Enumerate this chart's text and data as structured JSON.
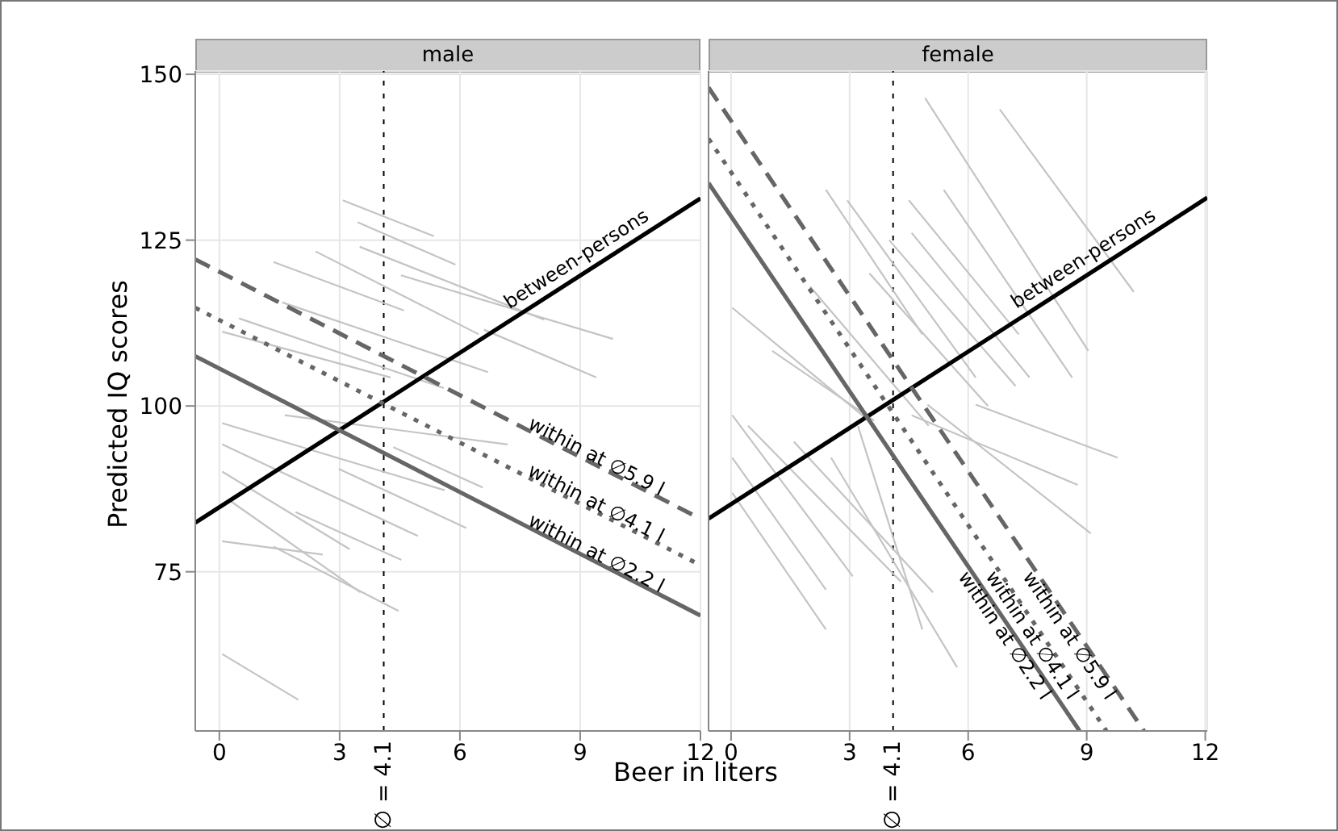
{
  "chart_data": [
    {
      "type": "line",
      "title": "male",
      "xlabel": "Beer in liters",
      "ylabel": "Predicted IQ scores",
      "xlim": [
        -0.6,
        12
      ],
      "ylim": [
        51,
        150.5
      ],
      "xticks": [
        0,
        3,
        6,
        9,
        12
      ],
      "yticks": [
        75,
        100,
        125,
        150
      ],
      "grid": true,
      "ref_lines": [
        {
          "axis": "x",
          "value": 4.1,
          "label": "∅ = 4.1",
          "line_style": "dotted"
        }
      ],
      "series": [
        {
          "color": "#c4c4c4",
          "x": [
            3.08,
            5.35
          ],
          "values": [
            131.0,
            125.6
          ]
        },
        {
          "color": "#c4c4c4",
          "x": [
            3.45,
            5.89
          ],
          "values": [
            127.7,
            121.3
          ]
        },
        {
          "color": "#c4c4c4",
          "x": [
            4.53,
            9.82
          ],
          "values": [
            119.7,
            110.1
          ]
        },
        {
          "color": "#c4c4c4",
          "x": [
            2.4,
            6.47
          ],
          "values": [
            123.3,
            110.8
          ]
        },
        {
          "color": "#c4c4c4",
          "x": [
            1.35,
            4.6
          ],
          "values": [
            121.7,
            114.4
          ]
        },
        {
          "color": "#c4c4c4",
          "x": [
            6.6,
            9.4
          ],
          "values": [
            111.5,
            104.3
          ]
        },
        {
          "color": "#c4c4c4",
          "x": [
            1.57,
            6.7
          ],
          "values": [
            115.6,
            105.1
          ]
        },
        {
          "color": "#c4c4c4",
          "x": [
            0.49,
            5.6
          ],
          "values": [
            113.2,
            102.7
          ]
        },
        {
          "color": "#c4c4c4",
          "x": [
            0.07,
            4.27
          ],
          "values": [
            111.2,
            104.3
          ]
        },
        {
          "color": "#c4c4c4",
          "x": [
            3.5,
            8.1
          ],
          "values": [
            124,
            113
          ]
        },
        {
          "color": "#c4c4c4",
          "x": [
            0.07,
            5.62
          ],
          "values": [
            97.4,
            87.3
          ]
        },
        {
          "color": "#c4c4c4",
          "x": [
            0.07,
            4.95
          ],
          "values": [
            94.2,
            80.4
          ]
        },
        {
          "color": "#c4c4c4",
          "x": [
            0.07,
            3.25
          ],
          "values": [
            90.1,
            78.4
          ]
        },
        {
          "color": "#c4c4c4",
          "x": [
            0.07,
            2.58
          ],
          "values": [
            79.6,
            77.6
          ]
        },
        {
          "color": "#c4c4c4",
          "x": [
            0.07,
            1.97
          ],
          "values": [
            62.6,
            55.7
          ]
        },
        {
          "color": "#c4c4c4",
          "x": [
            1.35,
            4.47
          ],
          "values": [
            78.8,
            69.1
          ]
        },
        {
          "color": "#c4c4c4",
          "x": [
            0.27,
            3.52
          ],
          "values": [
            85.7,
            71.9
          ]
        },
        {
          "color": "#c4c4c4",
          "x": [
            1.63,
            7.19
          ],
          "values": [
            98.6,
            94.2
          ]
        },
        {
          "color": "#c4c4c4",
          "x": [
            2.98,
            6.16
          ],
          "values": [
            90.5,
            81.6
          ]
        },
        {
          "color": "#c4c4c4",
          "x": [
            4.34,
            6.57
          ],
          "values": [
            93.8,
            87.7
          ]
        },
        {
          "color": "#c4c4c4",
          "x": [
            1.9,
            4.54
          ],
          "values": [
            84.0,
            76.8
          ]
        },
        {
          "name": "between-persons",
          "color": "#000000",
          "line_style": "solid",
          "x": [
            -0.6,
            12
          ],
          "values": [
            82.4,
            131.3
          ]
        },
        {
          "name": "within at ∅5.9 l",
          "color": "#666666",
          "line_style": "dashed",
          "x": [
            -0.6,
            12
          ],
          "values": [
            122.1,
            83
          ]
        },
        {
          "name": "within at ∅4.1 l",
          "color": "#666666",
          "line_style": "dotted",
          "x": [
            -0.6,
            12
          ],
          "values": [
            114.8,
            76
          ]
        },
        {
          "name": "within at ∅2.2 l",
          "color": "#666666",
          "line_style": "solid",
          "x": [
            -0.6,
            12
          ],
          "values": [
            107.5,
            68.4
          ]
        }
      ]
    },
    {
      "type": "line",
      "title": "female",
      "xlim": [
        -0.57,
        12.05
      ],
      "ylim": [
        51,
        150.5
      ],
      "xticks": [
        0,
        3,
        6,
        9,
        12
      ],
      "yticks": [
        75,
        100,
        125,
        150
      ],
      "grid": true,
      "tick_labels": "x",
      "ref_lines": [
        {
          "axis": "x",
          "value": 4.1,
          "label": "∅ = 4.1",
          "line_style": "dotted"
        }
      ],
      "series": [
        {
          "color": "#c4c4c4",
          "x": [
            4.91,
            9.04
          ],
          "values": [
            146.4,
            108.3
          ]
        },
        {
          "color": "#c4c4c4",
          "x": [
            6.8,
            10.19
          ],
          "values": [
            144.7,
            117.2
          ]
        },
        {
          "color": "#c4c4c4",
          "x": [
            4.5,
            7.28
          ],
          "values": [
            131.0,
            110.8
          ]
        },
        {
          "color": "#c4c4c4",
          "x": [
            5.38,
            8.63
          ],
          "values": [
            132.6,
            104.3
          ]
        },
        {
          "color": "#c4c4c4",
          "x": [
            2.94,
            6.19
          ],
          "values": [
            131.0,
            104.3
          ]
        },
        {
          "color": "#c4c4c4",
          "x": [
            0.03,
            3.48
          ],
          "values": [
            114.8,
            97.8
          ]
        },
        {
          "color": "#c4c4c4",
          "x": [
            2.4,
            4.84
          ],
          "values": [
            132.6,
            110.8
          ]
        },
        {
          "color": "#c4c4c4",
          "x": [
            1.04,
            3.62
          ],
          "values": [
            108.3,
            97.8
          ]
        },
        {
          "color": "#c4c4c4",
          "x": [
            4.57,
            7.55
          ],
          "values": [
            126.1,
            104.3
          ]
        },
        {
          "color": "#c4c4c4",
          "x": [
            0.03,
            3.08
          ],
          "values": [
            98.6,
            74.3
          ]
        },
        {
          "color": "#c4c4c4",
          "x": [
            0.03,
            2.4
          ],
          "values": [
            92.2,
            72.3
          ]
        },
        {
          "color": "#c4c4c4",
          "x": [
            0.03,
            2.4
          ],
          "values": [
            86.9,
            66.3
          ]
        },
        {
          "color": "#c4c4c4",
          "x": [
            0.43,
            4.3
          ],
          "values": [
            97.0,
            73.5
          ]
        },
        {
          "color": "#c4c4c4",
          "x": [
            1.59,
            5.11
          ],
          "values": [
            94.6,
            71.9
          ]
        },
        {
          "color": "#c4c4c4",
          "x": [
            2.53,
            5.72
          ],
          "values": [
            92.2,
            60.6
          ]
        },
        {
          "color": "#c4c4c4",
          "x": [
            3.21,
            4.84
          ],
          "values": [
            97,
            66.3
          ]
        },
        {
          "color": "#c4c4c4",
          "x": [
            4.97,
            9.1
          ],
          "values": [
            100.2,
            80.8
          ]
        },
        {
          "color": "#c4c4c4",
          "x": [
            6.19,
            9.78
          ],
          "values": [
            100.2,
            92.2
          ]
        },
        {
          "color": "#c4c4c4",
          "x": [
            4.57,
            8.77
          ],
          "values": [
            98.6,
            88.1
          ]
        },
        {
          "color": "#c4c4c4",
          "x": [
            3.5,
            6.5
          ],
          "values": [
            120,
            100
          ]
        },
        {
          "color": "#c4c4c4",
          "x": [
            4.0,
            7.2
          ],
          "values": [
            125,
            103
          ]
        },
        {
          "color": "#c4c4c4",
          "x": [
            2.0,
            5.0
          ],
          "values": [
            118,
            97
          ]
        },
        {
          "name": "between-persons",
          "color": "#000000",
          "line_style": "solid",
          "x": [
            -0.57,
            12.05
          ],
          "values": [
            83,
            131.4
          ]
        },
        {
          "name": "within at ∅5.9 l",
          "color": "#666666",
          "line_style": "dashed",
          "x": [
            -0.57,
            10.45
          ],
          "values": [
            148,
            51
          ]
        },
        {
          "name": "within at ∅4.1 l",
          "color": "#666666",
          "line_style": "dotted",
          "x": [
            -0.57,
            9.5
          ],
          "values": [
            140.3,
            51
          ]
        },
        {
          "name": "within at ∅2.2 l",
          "color": "#666666",
          "line_style": "solid",
          "x": [
            -0.57,
            8.82
          ],
          "values": [
            133.6,
            51
          ]
        }
      ]
    }
  ]
}
